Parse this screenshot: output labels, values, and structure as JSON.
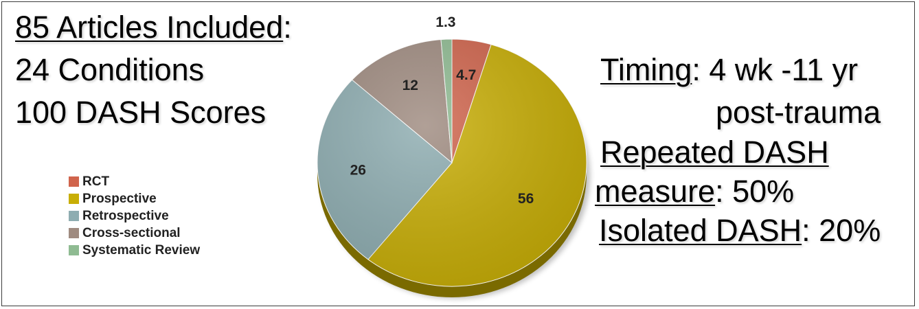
{
  "left_text": {
    "articles": "85 Articles Included",
    "articles_suffix": ":",
    "conditions": "24 Conditions",
    "scores": "100 DASH Scores"
  },
  "right_text": {
    "timing_label": "Timing",
    "timing_value": ": 4 wk -11 yr",
    "timing_cont": "post-trauma",
    "repeated_label": "Repeated DASH",
    "measure_label": "measure",
    "measure_value": ": 50%",
    "isolated_label": "Isolated DASH",
    "isolated_value": ": 20%"
  },
  "chart_data": {
    "type": "pie",
    "legend_position": "left",
    "slices": [
      {
        "label": "RCT",
        "value": 4.7,
        "value_label": "4.7",
        "color": "#d0644c"
      },
      {
        "label": "Prospective",
        "value": 56,
        "value_label": "56",
        "color": "#c8ae05"
      },
      {
        "label": "Retrospective",
        "value": 26,
        "value_label": "26",
        "color": "#8eadb1"
      },
      {
        "label": "Cross-sectional",
        "value": 12,
        "value_label": "12",
        "color": "#9f8b80"
      },
      {
        "label": "Systematic Review",
        "value": 1.3,
        "value_label": "1.3",
        "color": "#8fbb92"
      }
    ]
  }
}
